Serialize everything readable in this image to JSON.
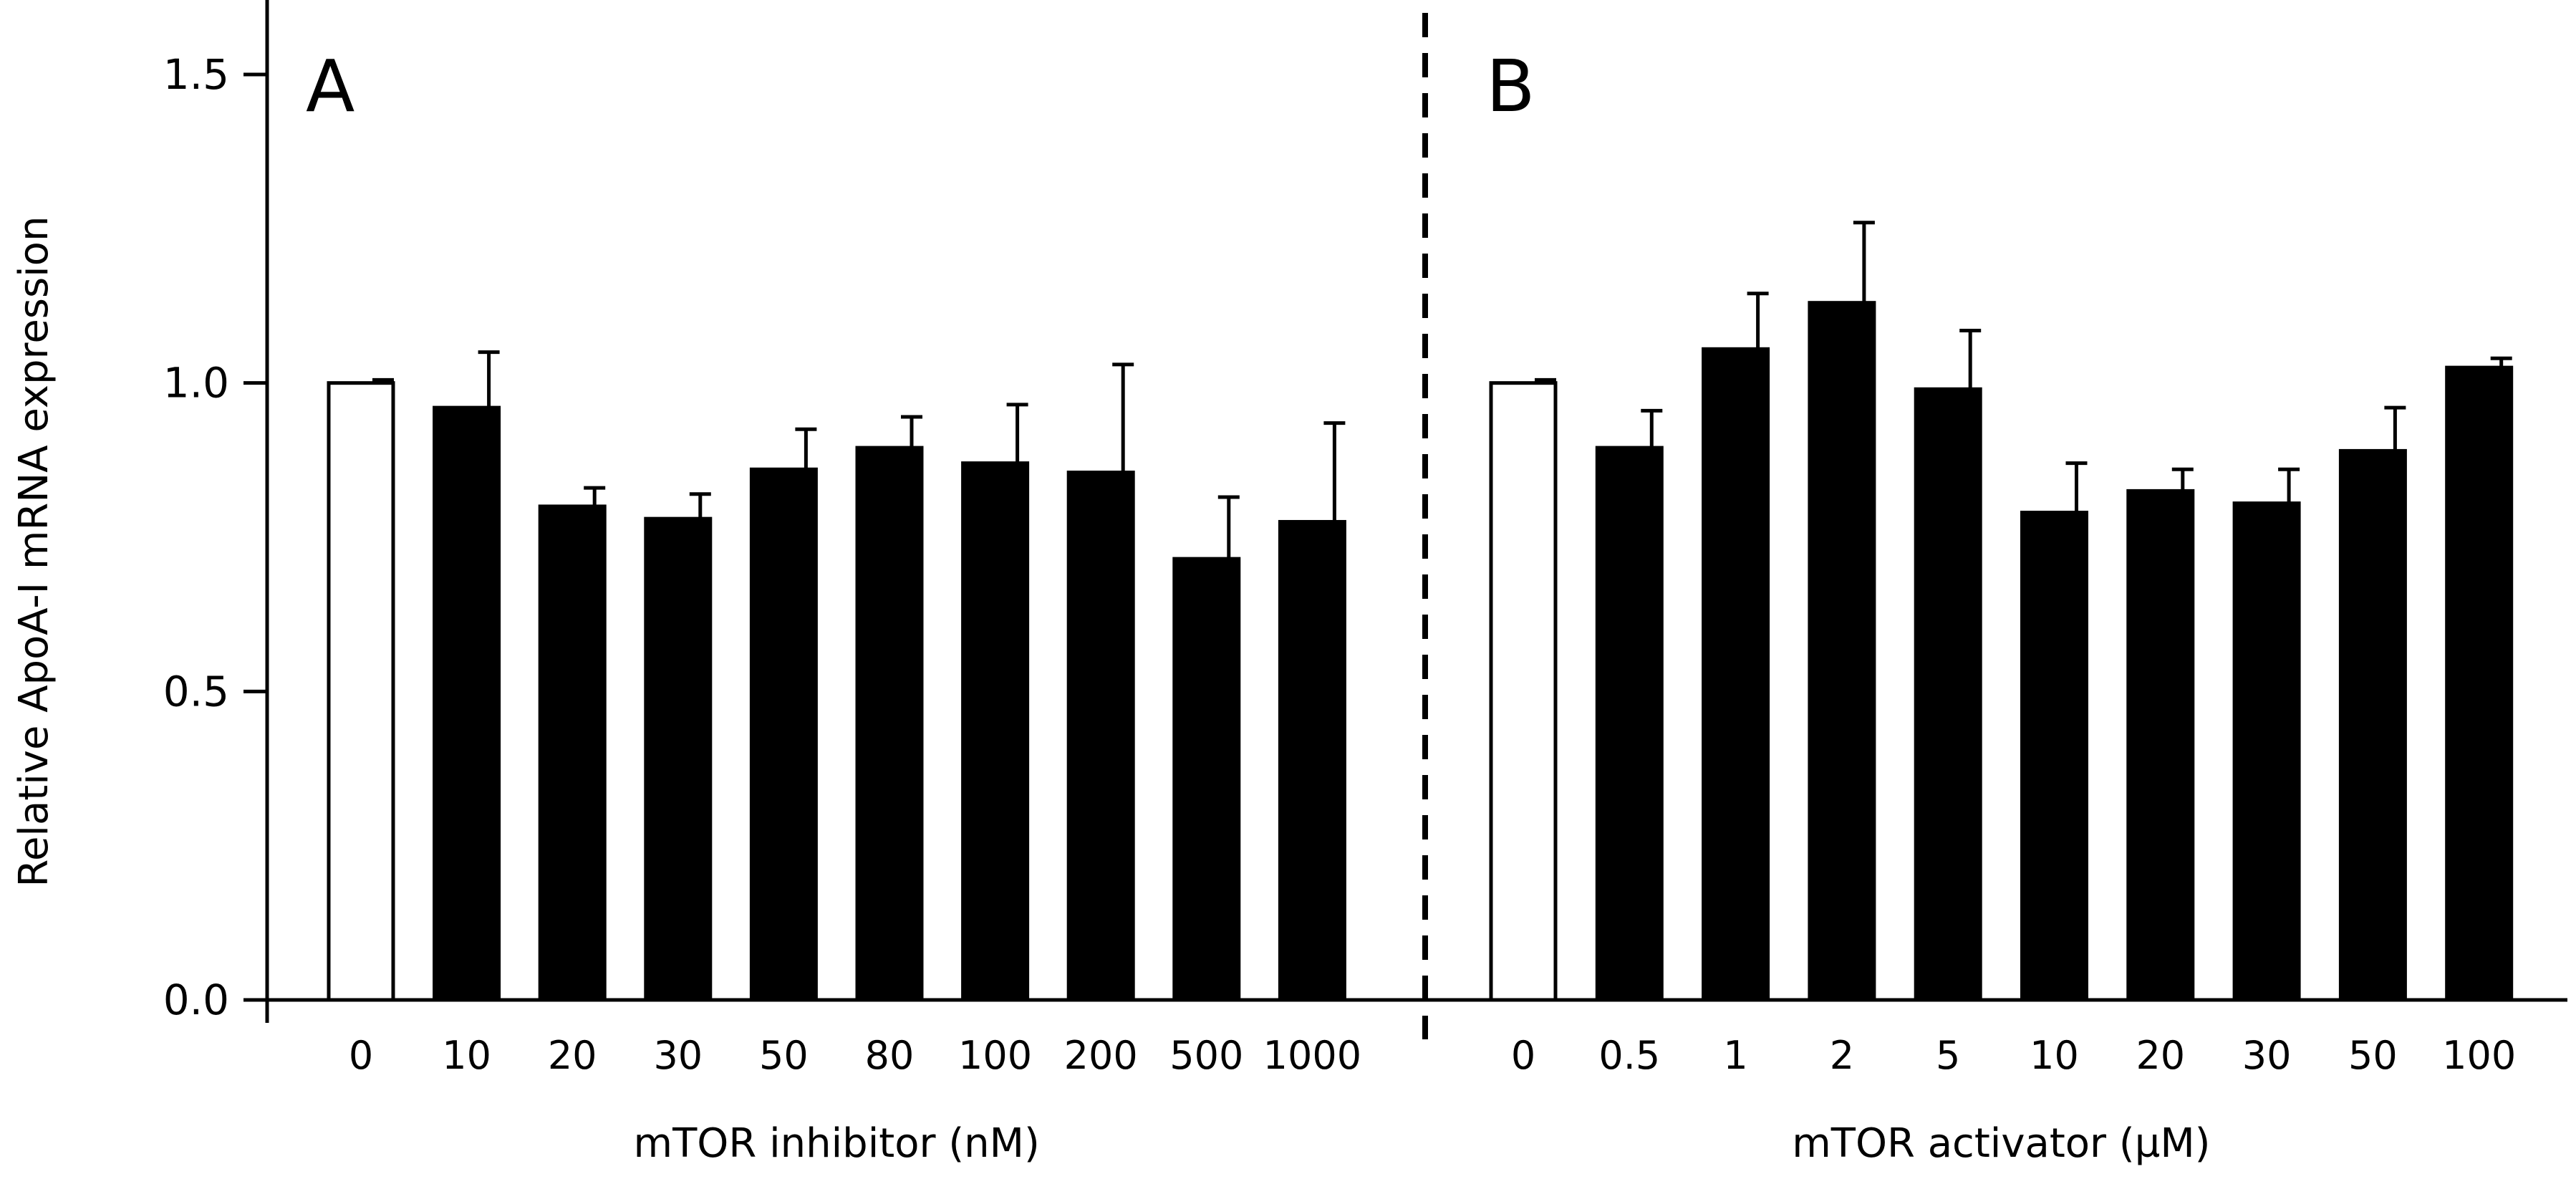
{
  "chart_data": {
    "type": "bar",
    "ylabel": "Relative ApoA-I mRNA expression",
    "ylim": [
      0,
      1.6
    ],
    "yticks": [
      0.0,
      0.5,
      1.0,
      1.5
    ],
    "ytick_labels": [
      "0.0",
      "0.5",
      "1.0",
      "1.5"
    ],
    "grid": false,
    "panels": [
      {
        "label": "A",
        "xlabel": "mTOR inhibitor (nM)",
        "categories": [
          "0",
          "10",
          "20",
          "30",
          "50",
          "80",
          "100",
          "200",
          "500",
          "1000"
        ],
        "values": [
          1.0,
          0.96,
          0.8,
          0.78,
          0.86,
          0.895,
          0.87,
          0.855,
          0.715,
          0.775
        ],
        "errors": [
          0.005,
          0.09,
          0.03,
          0.04,
          0.065,
          0.05,
          0.095,
          0.175,
          0.1,
          0.16
        ],
        "control_index": 0
      },
      {
        "label": "B",
        "xlabel": "mTOR activator (µM)",
        "categories": [
          "0",
          "0.5",
          "1",
          "2",
          "5",
          "10",
          "20",
          "30",
          "50",
          "100"
        ],
        "values": [
          1.0,
          0.895,
          1.055,
          1.13,
          0.99,
          0.79,
          0.825,
          0.805,
          0.89,
          1.025
        ],
        "errors": [
          0.005,
          0.06,
          0.09,
          0.13,
          0.095,
          0.08,
          0.035,
          0.055,
          0.07,
          0.015
        ],
        "control_index": 0
      }
    ],
    "colors": {
      "control_fill": "#ffffff",
      "treatment_fill": "#000000",
      "stroke": "#000000"
    }
  }
}
